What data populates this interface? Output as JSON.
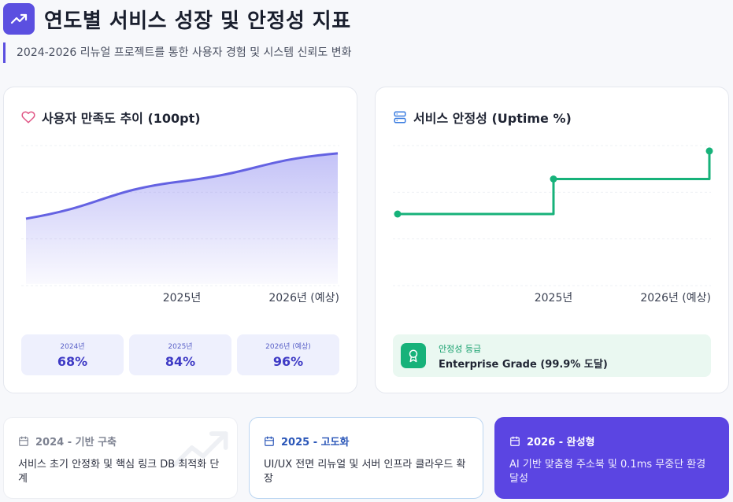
{
  "header": {
    "icon": "trending-up-icon",
    "title": "연도별 서비스 성장 및 안정성 지표",
    "subtitle": "2024-2026 리뉴얼 프로젝트를 통한 사용자 경험 및 시스템 신뢰도 변화"
  },
  "satisfaction": {
    "icon": "heart-icon",
    "title": "사용자 만족도 추이 (100pt)",
    "stats": [
      {
        "year": "2024년",
        "value": "68%"
      },
      {
        "year": "2025년",
        "value": "84%"
      },
      {
        "year": "2026년 (예상)",
        "value": "96%"
      }
    ]
  },
  "uptime": {
    "icon": "server-icon",
    "title": "서비스 안정성 (Uptime %)",
    "grade_icon": "award-icon",
    "grade_label": "안정성 등급",
    "grade_value": "Enterprise Grade (99.9% 도달)"
  },
  "chart_data": [
    {
      "type": "area",
      "title": "사용자 만족도 추이 (100pt)",
      "x": [
        "2024년",
        "2025년",
        "2026년 (예상)"
      ],
      "tick_labels": [
        "",
        "2025년",
        "2026년 (예상)"
      ],
      "series": [
        {
          "values": [
            68,
            84,
            96
          ]
        }
      ],
      "ylim": [
        40,
        100
      ],
      "grid": true,
      "color": "#6462e2"
    },
    {
      "type": "line",
      "title": "서비스 안정성 (Uptime %)",
      "x": [
        "2024년",
        "2025년",
        "2026년 (예상)"
      ],
      "tick_labels": [
        "",
        "2025년",
        "2026년 (예상)"
      ],
      "series": [
        {
          "values": [
            99.0,
            99.5,
            99.9
          ]
        }
      ],
      "ylim": [
        98,
        100
      ],
      "step": true,
      "grid": true,
      "color": "#17b27a"
    }
  ],
  "phases": [
    {
      "icon": "calendar-icon",
      "title": "2024 - 기반 구축",
      "desc": "서비스 초기 안정화 및 핵심 링크 DB 최적화 단계"
    },
    {
      "icon": "calendar-icon",
      "title": "2025 - 고도화",
      "desc": "UI/UX 전면 리뉴얼 및 서버 인프라 클라우드 확장"
    },
    {
      "icon": "calendar-icon",
      "title": "2026 - 완성형",
      "desc": "AI 기반 맞춤형 주소북 및 0.1ms 무중단 환경 달성"
    }
  ]
}
